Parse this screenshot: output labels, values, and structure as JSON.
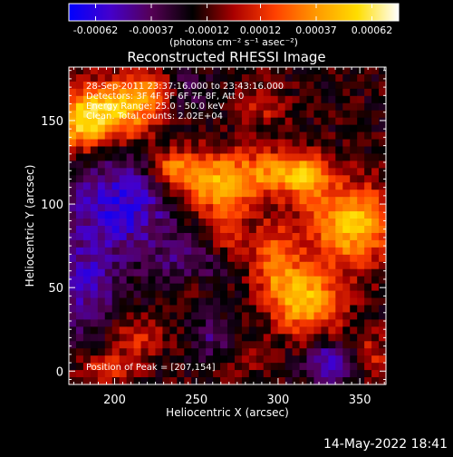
{
  "chart_data": {
    "type": "heatmap",
    "title": "Reconstructed RHESSI Image",
    "xlabel": "Heliocentric X (arcsec)",
    "ylabel": "Heliocentric Y (arcsec)",
    "xlim": [
      172,
      366
    ],
    "ylim": [
      -8,
      182
    ],
    "xticks": [
      200,
      250,
      300,
      350
    ],
    "yticks": [
      0,
      50,
      100,
      150
    ],
    "colorbar": {
      "range": [
        -0.00074,
        0.00074
      ],
      "ticks": [
        "-0.00062",
        "-0.00037",
        "-0.00012",
        "0.00012",
        "0.00037",
        "0.00062"
      ],
      "tick_values": [
        -0.00062,
        -0.00037,
        -0.00012,
        0.00012,
        0.00037,
        0.00062
      ],
      "label": "(photons cm⁻² s⁻¹ asec⁻²)",
      "colormap": [
        "#0000ff",
        "#4400cc",
        "#550055",
        "#000000",
        "#aa0000",
        "#ff4000",
        "#ff9900",
        "#ffdd00",
        "#ffffff"
      ]
    },
    "sources": [
      {
        "x": 200,
        "y": 155,
        "peak": 0.00066,
        "sx": 17,
        "sy": 13
      },
      {
        "x": 178,
        "y": 148,
        "peak": 0.0005,
        "sx": 10,
        "sy": 12
      },
      {
        "x": 225,
        "y": 168,
        "peak": 0.0004,
        "sx": 12,
        "sy": 8
      },
      {
        "x": 262,
        "y": 112,
        "peak": 0.00062,
        "sx": 19,
        "sy": 13
      },
      {
        "x": 235,
        "y": 122,
        "peak": 0.0004,
        "sx": 10,
        "sy": 8
      },
      {
        "x": 300,
        "y": 120,
        "peak": 0.0004,
        "sx": 15,
        "sy": 9
      },
      {
        "x": 345,
        "y": 88,
        "peak": 0.00066,
        "sx": 18,
        "sy": 17
      },
      {
        "x": 318,
        "y": 115,
        "peak": 0.0004,
        "sx": 10,
        "sy": 10
      },
      {
        "x": 318,
        "y": 42,
        "peak": 0.00062,
        "sx": 14,
        "sy": 14
      },
      {
        "x": 298,
        "y": 65,
        "peak": 0.00042,
        "sx": 10,
        "sy": 16
      },
      {
        "x": 355,
        "y": 8,
        "peak": 0.0003,
        "sx": 10,
        "sy": 10
      },
      {
        "x": 245,
        "y": 52,
        "peak": 0.00024,
        "sx": 10,
        "sy": 9
      },
      {
        "x": 215,
        "y": 20,
        "peak": 0.00026,
        "sx": 12,
        "sy": 8
      },
      {
        "x": 195,
        "y": 2,
        "peak": 0.0003,
        "sx": 12,
        "sy": 7
      },
      {
        "x": 270,
        "y": 82,
        "peak": 0.00024,
        "sx": 8,
        "sy": 10
      },
      {
        "x": 280,
        "y": 8,
        "peak": 0.00018,
        "sx": 8,
        "sy": 8
      },
      {
        "x": 290,
        "y": 160,
        "peak": 0.00022,
        "sx": 10,
        "sy": 10
      }
    ],
    "background": [
      {
        "x": 205,
        "y": 100,
        "depth": -0.00045,
        "sx": 25,
        "sy": 22
      },
      {
        "x": 180,
        "y": 50,
        "depth": -0.00035,
        "sx": 14,
        "sy": 20
      },
      {
        "x": 245,
        "y": 60,
        "depth": -0.0003,
        "sx": 14,
        "sy": 12
      },
      {
        "x": 335,
        "y": 5,
        "depth": -0.0005,
        "sx": 12,
        "sy": 8
      },
      {
        "x": 260,
        "y": 20,
        "depth": -0.00025,
        "sx": 10,
        "sy": 8
      },
      {
        "x": 240,
        "y": 168,
        "depth": -0.0003,
        "sx": 10,
        "sy": 9
      }
    ]
  },
  "annotations": {
    "time_range": "28-Sep-2011 23:37:16.000 to 23:43:16.000",
    "detectors": "Detectors: 3F 4F 5F 6F 7F 8F, Att 0",
    "energy": "Energy Range: 25.0 - 50.0 keV",
    "counts": "Clean. Total counts: 2.02E+04",
    "peak": "Position of Peak = [207,154]"
  },
  "footer": {
    "date": "14-May-2022 18:41"
  }
}
